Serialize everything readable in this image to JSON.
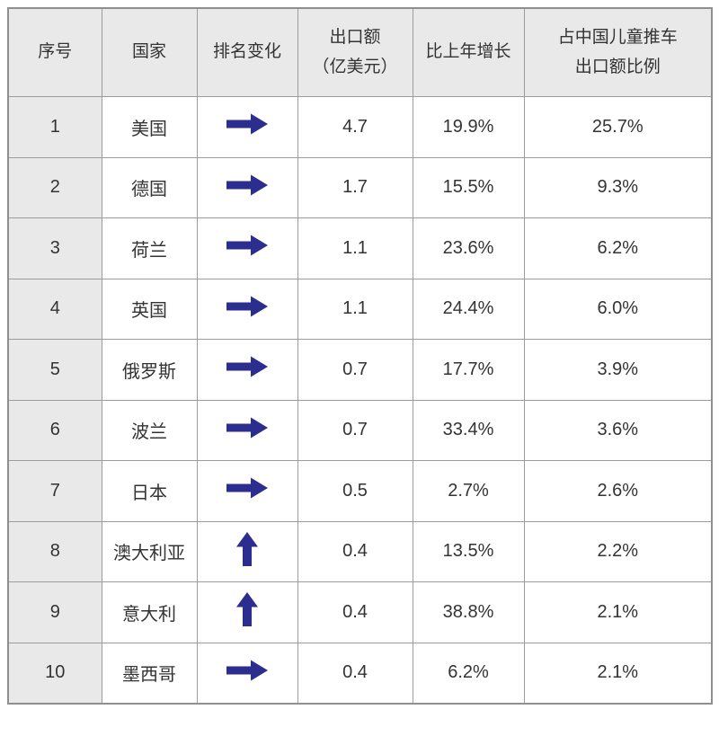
{
  "header": {
    "labels": [
      "序号",
      "国家",
      "排名变化",
      "出口额\n（亿美元）",
      "比上年增长",
      "占中国儿童推车\n出口额比例"
    ]
  },
  "chart_data": {
    "type": "table",
    "columns": [
      "序号",
      "国家",
      "排名变化",
      "出口额（亿美元）",
      "比上年增长",
      "占中国儿童推车出口额比例"
    ],
    "rows": [
      [
        "1",
        "美国",
        "→",
        "4.7",
        "19.9%",
        "25.7%"
      ],
      [
        "2",
        "德国",
        "→",
        "1.7",
        "15.5%",
        "9.3%"
      ],
      [
        "3",
        "荷兰",
        "→",
        "1.1",
        "23.6%",
        "6.2%"
      ],
      [
        "4",
        "英国",
        "→",
        "1.1",
        "24.4%",
        "6.0%"
      ],
      [
        "5",
        "俄罗斯",
        "→",
        "0.7",
        "17.7%",
        "3.9%"
      ],
      [
        "6",
        "波兰",
        "→",
        "0.7",
        "33.4%",
        "3.6%"
      ],
      [
        "7",
        "日本",
        "→",
        "0.5",
        "2.7%",
        "2.6%"
      ],
      [
        "8",
        "澳大利亚",
        "↑",
        "0.4",
        "13.5%",
        "2.2%"
      ],
      [
        "9",
        "意大利",
        "↑",
        "0.4",
        "38.8%",
        "2.1%"
      ],
      [
        "10",
        "墨西哥",
        "→",
        "0.4",
        "6.2%",
        "2.1%"
      ]
    ]
  },
  "icons": {
    "rank_same": "right-arrow",
    "rank_up": "up-arrow"
  },
  "colors": {
    "arrow": "#2b2e8f",
    "header_bg": "#e9e9e9",
    "index_col_bg": "#e9e9e9",
    "border": "#9c9c9c",
    "text": "#333333"
  }
}
